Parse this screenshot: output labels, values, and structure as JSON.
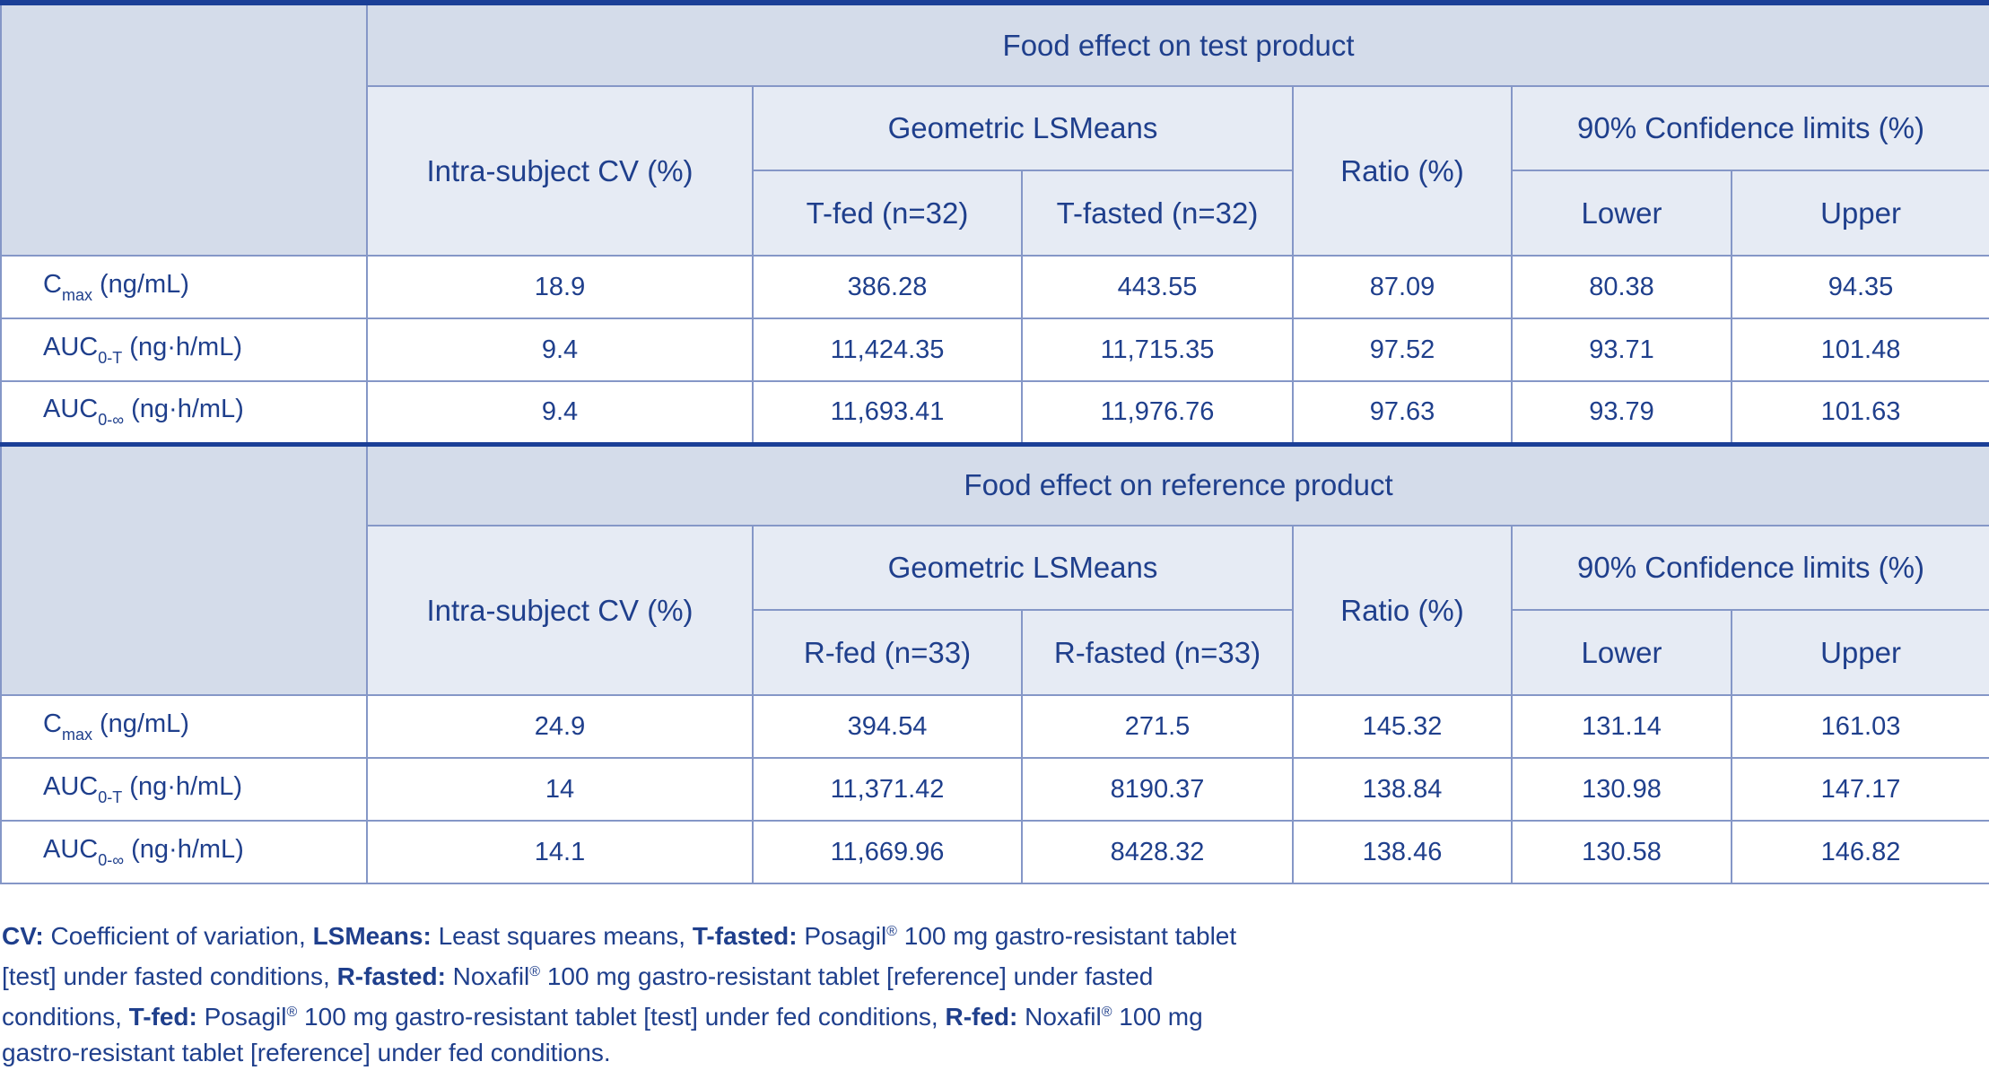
{
  "columns_ratio_label": "Ratio (%)",
  "sections": [
    {
      "title": "Food effect on test product",
      "cv_label": "Intra-subject CV (%)",
      "geo_label": "Geometric LSMeans",
      "ratio_label": "Ratio (%)",
      "ci_label": "90% Confidence limits (%)",
      "fed_label": "T-fed (n=32)",
      "fasted_label": "T-fasted (n=32)",
      "lower_label": "Lower",
      "upper_label": "Upper",
      "rows": [
        {
          "param": "C",
          "sub": "max",
          "unit": " (ng/mL)",
          "cv": "18.9",
          "fed": "386.28",
          "fasted": "443.55",
          "ratio": "87.09",
          "lower": "80.38",
          "upper": "94.35"
        },
        {
          "param": "AUC",
          "sub": "0-T",
          "unit": " (ng·h/mL)",
          "cv": "9.4",
          "fed": "11,424.35",
          "fasted": "11,715.35",
          "ratio": "97.52",
          "lower": "93.71",
          "upper": "101.48"
        },
        {
          "param": "AUC",
          "sub": "0-∞",
          "unit": " (ng·h/mL)",
          "cv": "9.4",
          "fed": "11,693.41",
          "fasted": "11,976.76",
          "ratio": "97.63",
          "lower": "93.79",
          "upper": "101.63"
        }
      ]
    },
    {
      "title": "Food effect on reference product",
      "cv_label": "Intra-subject CV (%)",
      "geo_label": "Geometric LSMeans",
      "ratio_label": "Ratio (%)",
      "ci_label": "90% Confidence limits (%)",
      "fed_label": "R-fed (n=33)",
      "fasted_label": "R-fasted (n=33)",
      "lower_label": "Lower",
      "upper_label": "Upper",
      "rows": [
        {
          "param": "C",
          "sub": "max",
          "unit": " (ng/mL)",
          "cv": "24.9",
          "fed": "394.54",
          "fasted": "271.5",
          "ratio": "145.32",
          "lower": "131.14",
          "upper": "161.03"
        },
        {
          "param": "AUC",
          "sub": "0-T",
          "unit": " (ng·h/mL)",
          "cv": "14",
          "fed": "11,371.42",
          "fasted": "8190.37",
          "ratio": "138.84",
          "lower": "130.98",
          "upper": "147.17"
        },
        {
          "param": "AUC",
          "sub": "0-∞",
          "unit": " (ng·h/mL)",
          "cv": "14.1",
          "fed": "11,669.96",
          "fasted": "8428.32",
          "ratio": "138.46",
          "lower": "130.58",
          "upper": "146.82"
        }
      ]
    }
  ],
  "footnote": {
    "cv_key": "CV:",
    "cv_text": " Coefficient of variation, ",
    "ls_key": "LSMeans:",
    "ls_text": " Least squares means, ",
    "tfasted_key": "T-fasted:",
    "tfasted_text_1": " Posagil",
    "reg": "®",
    "tfasted_text_2": " 100 mg gastro-resistant tablet [test] under fasted conditions, ",
    "rfasted_key": "R-fasted:",
    "rfasted_text_1": " Noxafil",
    "rfasted_text_2": " 100 mg gastro-resistant tablet [reference] under fasted conditions, ",
    "tfed_key": "T-fed:",
    "tfed_text_1": " Posagil",
    "tfed_text_2": " 100 mg gastro-resistant tablet [test] under fed conditions, ",
    "rfed_key": "R-fed:",
    "rfed_text_1": " Noxafil",
    "rfed_text_2": " 100 mg gastro-resistant tablet [reference] under fed conditions."
  },
  "colors": {
    "text": "#1f3f8c",
    "header_dark": "#d4dcea",
    "header_light": "#e6ebf4",
    "grid": "#8597c7",
    "rule": "#1b3f97"
  }
}
